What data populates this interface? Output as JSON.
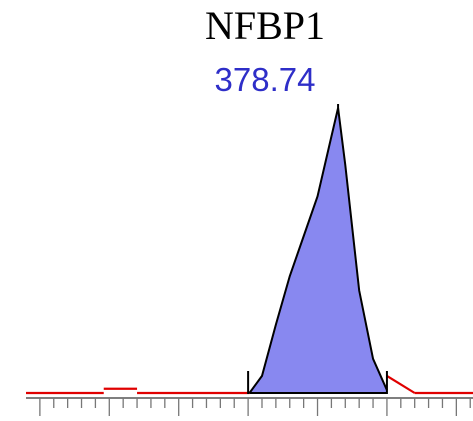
{
  "chart_data": {
    "type": "area",
    "title": "NFBP1",
    "annotations": [
      "378.74"
    ],
    "xlabel": "",
    "ylabel": "",
    "grid": false,
    "colors": {
      "peak_fill": "#8888f0",
      "peak_outline": "#000000",
      "baseline": "#e00000",
      "label": "#2e2ec8"
    },
    "peak_apex": 378.74,
    "peak_bounds": [
      375.5,
      380.5
    ],
    "xlim": [
      367.5,
      383.6
    ],
    "ylim": [
      0,
      100
    ],
    "peak": {
      "x": [
        375.55,
        376.0,
        376.5,
        377.0,
        377.5,
        378.0,
        378.5,
        378.74,
        379.0,
        379.5,
        380.0,
        380.5
      ],
      "y": [
        0,
        6,
        24,
        41,
        55,
        69,
        90,
        100,
        80,
        36,
        12,
        1
      ]
    },
    "baseline_segments": [
      {
        "x": [
          367.5,
          370.3
        ],
        "y": [
          0,
          0
        ]
      },
      {
        "x": [
          370.3,
          371.5
        ],
        "y": [
          1.5,
          1.5
        ]
      },
      {
        "x": [
          371.5,
          375.55
        ],
        "y": [
          0,
          0
        ]
      },
      {
        "x": [
          380.5,
          381.5
        ],
        "y": [
          6,
          0
        ]
      },
      {
        "x": [
          381.5,
          383.6
        ],
        "y": [
          0,
          0
        ]
      }
    ]
  }
}
